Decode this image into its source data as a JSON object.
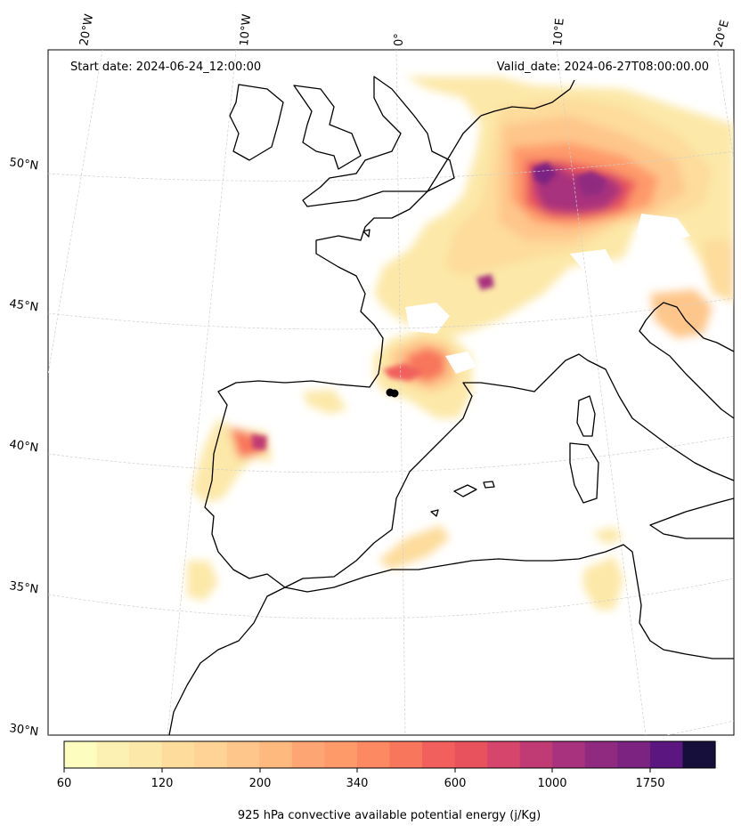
{
  "header": {
    "start_date": "Start date: 2024-06-24_12:00:00",
    "valid_date": "Valid_date: 2024-06-27T08:00:00.00"
  },
  "longitude_labels": [
    "20°W",
    "10°W",
    "0°",
    "10°E",
    "20°E"
  ],
  "latitude_labels": [
    "50°N",
    "45°N",
    "40°N",
    "35°N",
    "30°N"
  ],
  "colorbar": {
    "label": "925 hPa convective available potential energy (j/Kg)",
    "tick_labels": [
      "60",
      "120",
      "200",
      "340",
      "600",
      "1000",
      "1750"
    ],
    "levels": 20,
    "colors": [
      "#fcfdbf",
      "#fcf1b2",
      "#fce8a8",
      "#fddc9c",
      "#fed395",
      "#fec68a",
      "#feb97f",
      "#fea673",
      "#fe9a6a",
      "#fc8961",
      "#f8765c",
      "#f1605d",
      "#e8525d",
      "#d6456c",
      "#c03b73",
      "#a8327d",
      "#902a81",
      "#7c2382",
      "#5c167f",
      "#160f3b"
    ]
  },
  "map_colors": {
    "coastline": "#000000",
    "marker": "#000000"
  }
}
